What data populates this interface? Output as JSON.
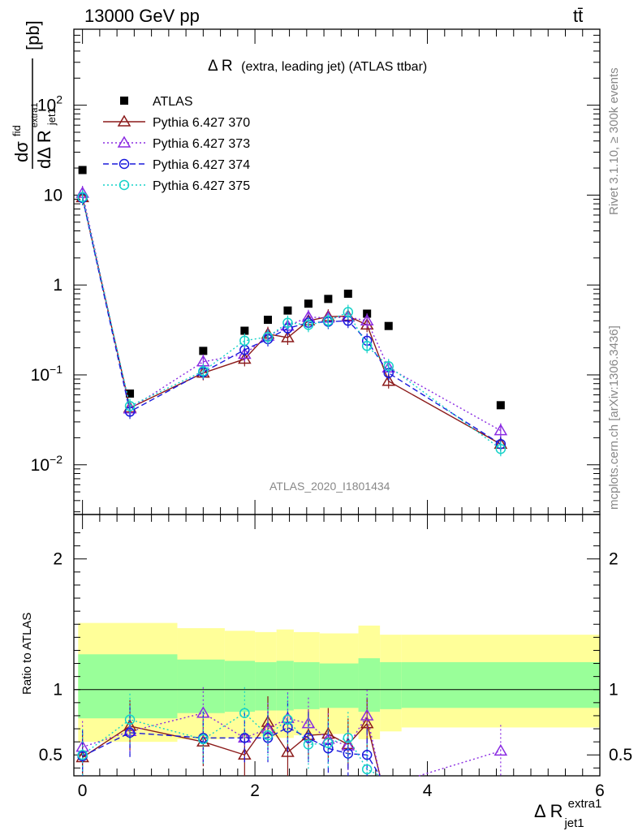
{
  "header": {
    "energy": "13000 GeV pp",
    "process": "tt̄",
    "title_main": "Δ R",
    "title_sub": "(extra, leading jet) (ATLAS ttbar)",
    "analysis_id": "ATLAS_2020_I1801434",
    "side_rivet": "Rivet 3.1.10, ≥ 300k events",
    "side_mcplots": "mcplots.cern.ch [arXiv:1306.3436]"
  },
  "axes": {
    "top_ylabel_lhs": "dσ",
    "top_ylabel_sup": "fid",
    "top_ylabel_den": "dΔ R",
    "top_ylabel_den_sub": "jet1",
    "top_ylabel_den_sup": "extra1",
    "top_ylabel_unit": "[pb]",
    "top_yticks": [
      {
        "v": 0.01,
        "label": "10",
        "exp": "−2"
      },
      {
        "v": 0.1,
        "label": "10",
        "exp": "−1"
      },
      {
        "v": 1,
        "label": "1",
        "exp": ""
      },
      {
        "v": 10,
        "label": "10",
        "exp": ""
      },
      {
        "v": 100,
        "label": "10",
        "exp": "2"
      }
    ],
    "bottom_ylabel": "Ratio to ATLAS",
    "bottom_yticks": [
      {
        "v": 0.5,
        "label": "0.5"
      },
      {
        "v": 1,
        "label": "1"
      },
      {
        "v": 2,
        "label": "2"
      }
    ],
    "xlabel_main": "Δ R",
    "xlabel_sub": "jet1",
    "xlabel_sup": "extra1",
    "xticks": [
      {
        "v": 0,
        "label": "0"
      },
      {
        "v": 2,
        "label": "2"
      },
      {
        "v": 4,
        "label": "4"
      },
      {
        "v": 6,
        "label": "6"
      }
    ]
  },
  "legend": [
    {
      "label": "ATLAS",
      "key": "atlas"
    },
    {
      "label": "Pythia 6.427 370",
      "key": "s370"
    },
    {
      "label": "Pythia 6.427 373",
      "key": "s373"
    },
    {
      "label": "Pythia 6.427 374",
      "key": "s374"
    },
    {
      "label": "Pythia 6.427 375",
      "key": "s375"
    }
  ],
  "chart_data": {
    "type": "scatter",
    "xlim": [
      -0.1,
      6
    ],
    "ylim_top": [
      0.0028,
      700
    ],
    "yscale_top": "log",
    "ylim_ratio": [
      0.34,
      2.34
    ],
    "legend_placement": "top-left",
    "x": [
      0.0,
      0.55,
      1.4,
      1.88,
      2.15,
      2.38,
      2.62,
      2.85,
      3.08,
      3.3,
      3.55,
      4.85
    ],
    "bin_edges": [
      -0.05,
      1.1,
      1.65,
      2.0,
      2.25,
      2.45,
      2.75,
      3.2,
      3.45,
      3.7,
      6.0
    ],
    "band_inner": [
      [
        0.78,
        1.27
      ],
      [
        0.82,
        1.23
      ],
      [
        0.83,
        1.22
      ],
      [
        0.84,
        1.21
      ],
      [
        0.84,
        1.22
      ],
      [
        0.85,
        1.21
      ],
      [
        0.86,
        1.2
      ],
      [
        0.83,
        1.24
      ],
      [
        0.85,
        1.21
      ],
      [
        0.86,
        1.21
      ]
    ],
    "band_outer": [
      [
        0.6,
        1.51
      ],
      [
        0.62,
        1.47
      ],
      [
        0.63,
        1.45
      ],
      [
        0.64,
        1.44
      ],
      [
        0.63,
        1.46
      ],
      [
        0.65,
        1.44
      ],
      [
        0.66,
        1.43
      ],
      [
        0.62,
        1.49
      ],
      [
        0.68,
        1.42
      ],
      [
        0.71,
        1.42
      ]
    ],
    "series": [
      {
        "name": "ATLAS",
        "key": "atlas",
        "color": "#000000",
        "values": [
          19,
          0.062,
          0.185,
          0.31,
          0.41,
          0.52,
          0.62,
          0.7,
          0.8,
          0.48,
          0.35,
          0.046
        ]
      },
      {
        "name": "Pythia 6.427 370",
        "key": "s370",
        "color": "#8b1a1a",
        "values": [
          9.4,
          0.043,
          0.105,
          0.15,
          0.285,
          0.26,
          0.4,
          0.445,
          0.45,
          0.36,
          0.085,
          0.017
        ],
        "ratio": [
          0.48,
          0.72,
          0.6,
          0.5,
          0.75,
          0.52,
          0.65,
          0.66,
          0.58,
          0.74,
          null,
          null
        ]
      },
      {
        "name": "Pythia 6.427 373",
        "key": "s373",
        "color": "#8a2be2",
        "values": [
          10.5,
          0.042,
          0.14,
          0.17,
          0.27,
          0.35,
          0.44,
          0.43,
          0.44,
          0.4,
          0.12,
          0.024
        ],
        "ratio": [
          0.56,
          0.68,
          0.82,
          0.63,
          0.7,
          0.78,
          0.74,
          0.62,
          0.57,
          0.8,
          null,
          0.53
        ]
      },
      {
        "name": "Pythia 6.427 374",
        "key": "s374",
        "color": "#1a1adc",
        "values": [
          9.3,
          0.039,
          0.107,
          0.19,
          0.25,
          0.33,
          0.38,
          0.39,
          0.4,
          0.24,
          0.105,
          0.017
        ],
        "ratio": [
          0.49,
          0.67,
          0.63,
          0.63,
          0.63,
          0.71,
          0.63,
          0.55,
          0.51,
          0.5,
          null,
          null
        ]
      },
      {
        "name": "Pythia 6.427 375",
        "key": "s375",
        "color": "#14d2c8",
        "values": [
          9.5,
          0.045,
          0.11,
          0.24,
          0.265,
          0.38,
          0.36,
          0.4,
          0.5,
          0.21,
          0.125,
          0.015
        ],
        "ratio": [
          0.5,
          0.77,
          0.62,
          0.82,
          0.65,
          0.77,
          0.58,
          0.59,
          0.63,
          0.39,
          null,
          null
        ]
      }
    ]
  }
}
